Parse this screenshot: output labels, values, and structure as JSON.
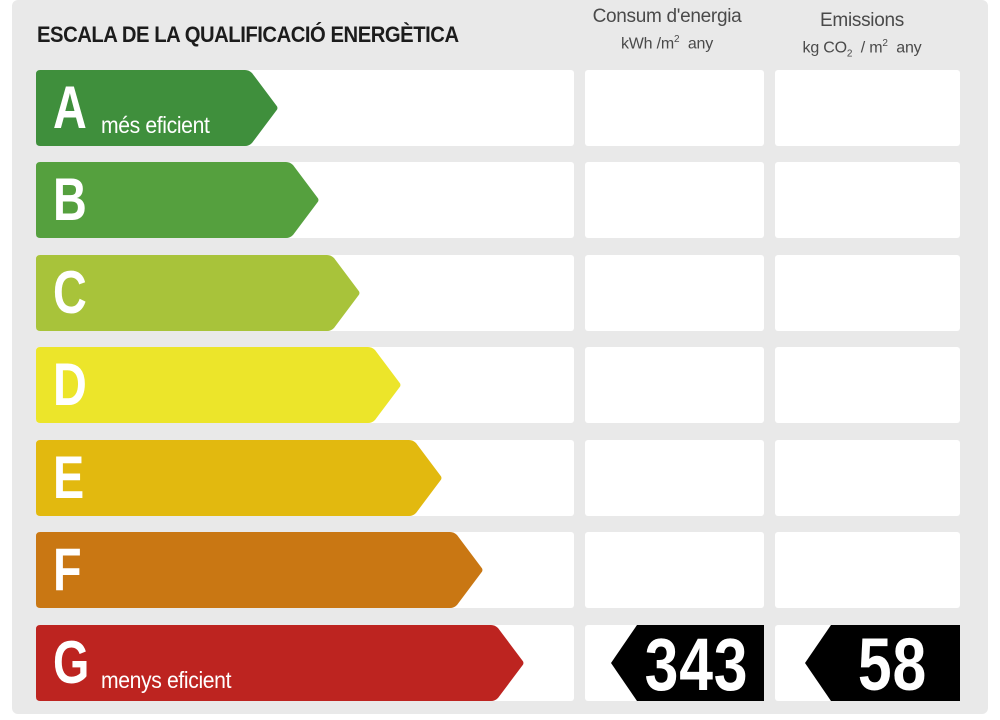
{
  "header": {
    "title": "ESCALA DE LA QUALIFICACIÓ ENERGÈTICA",
    "energy_title": "Consum d'energia",
    "energy_unit_prefix": "kWh /m",
    "energy_unit_exp": "2",
    "energy_unit_suffix": "any",
    "emissions_title": "Emissions",
    "emissions_unit_prefix": "kg CO",
    "emissions_unit_sub": "2",
    "emissions_unit_mid": "/ m",
    "emissions_unit_exp": "2",
    "emissions_unit_suffix": "any"
  },
  "ratings": [
    {
      "letter": "A",
      "sublabel": "més eficient",
      "color": "#3f8f3c"
    },
    {
      "letter": "B",
      "sublabel": "",
      "color": "#55a03e"
    },
    {
      "letter": "C",
      "sublabel": "",
      "color": "#a8c33a"
    },
    {
      "letter": "D",
      "sublabel": "",
      "color": "#ece52a"
    },
    {
      "letter": "E",
      "sublabel": "",
      "color": "#e2b90f"
    },
    {
      "letter": "F",
      "sublabel": "",
      "color": "#c97713"
    },
    {
      "letter": "G",
      "sublabel": "menys eficient",
      "color": "#bd2420"
    }
  ],
  "result": {
    "rating": "G",
    "energy_value": "343",
    "emissions_value": "58",
    "indicator_color": "#000000"
  }
}
